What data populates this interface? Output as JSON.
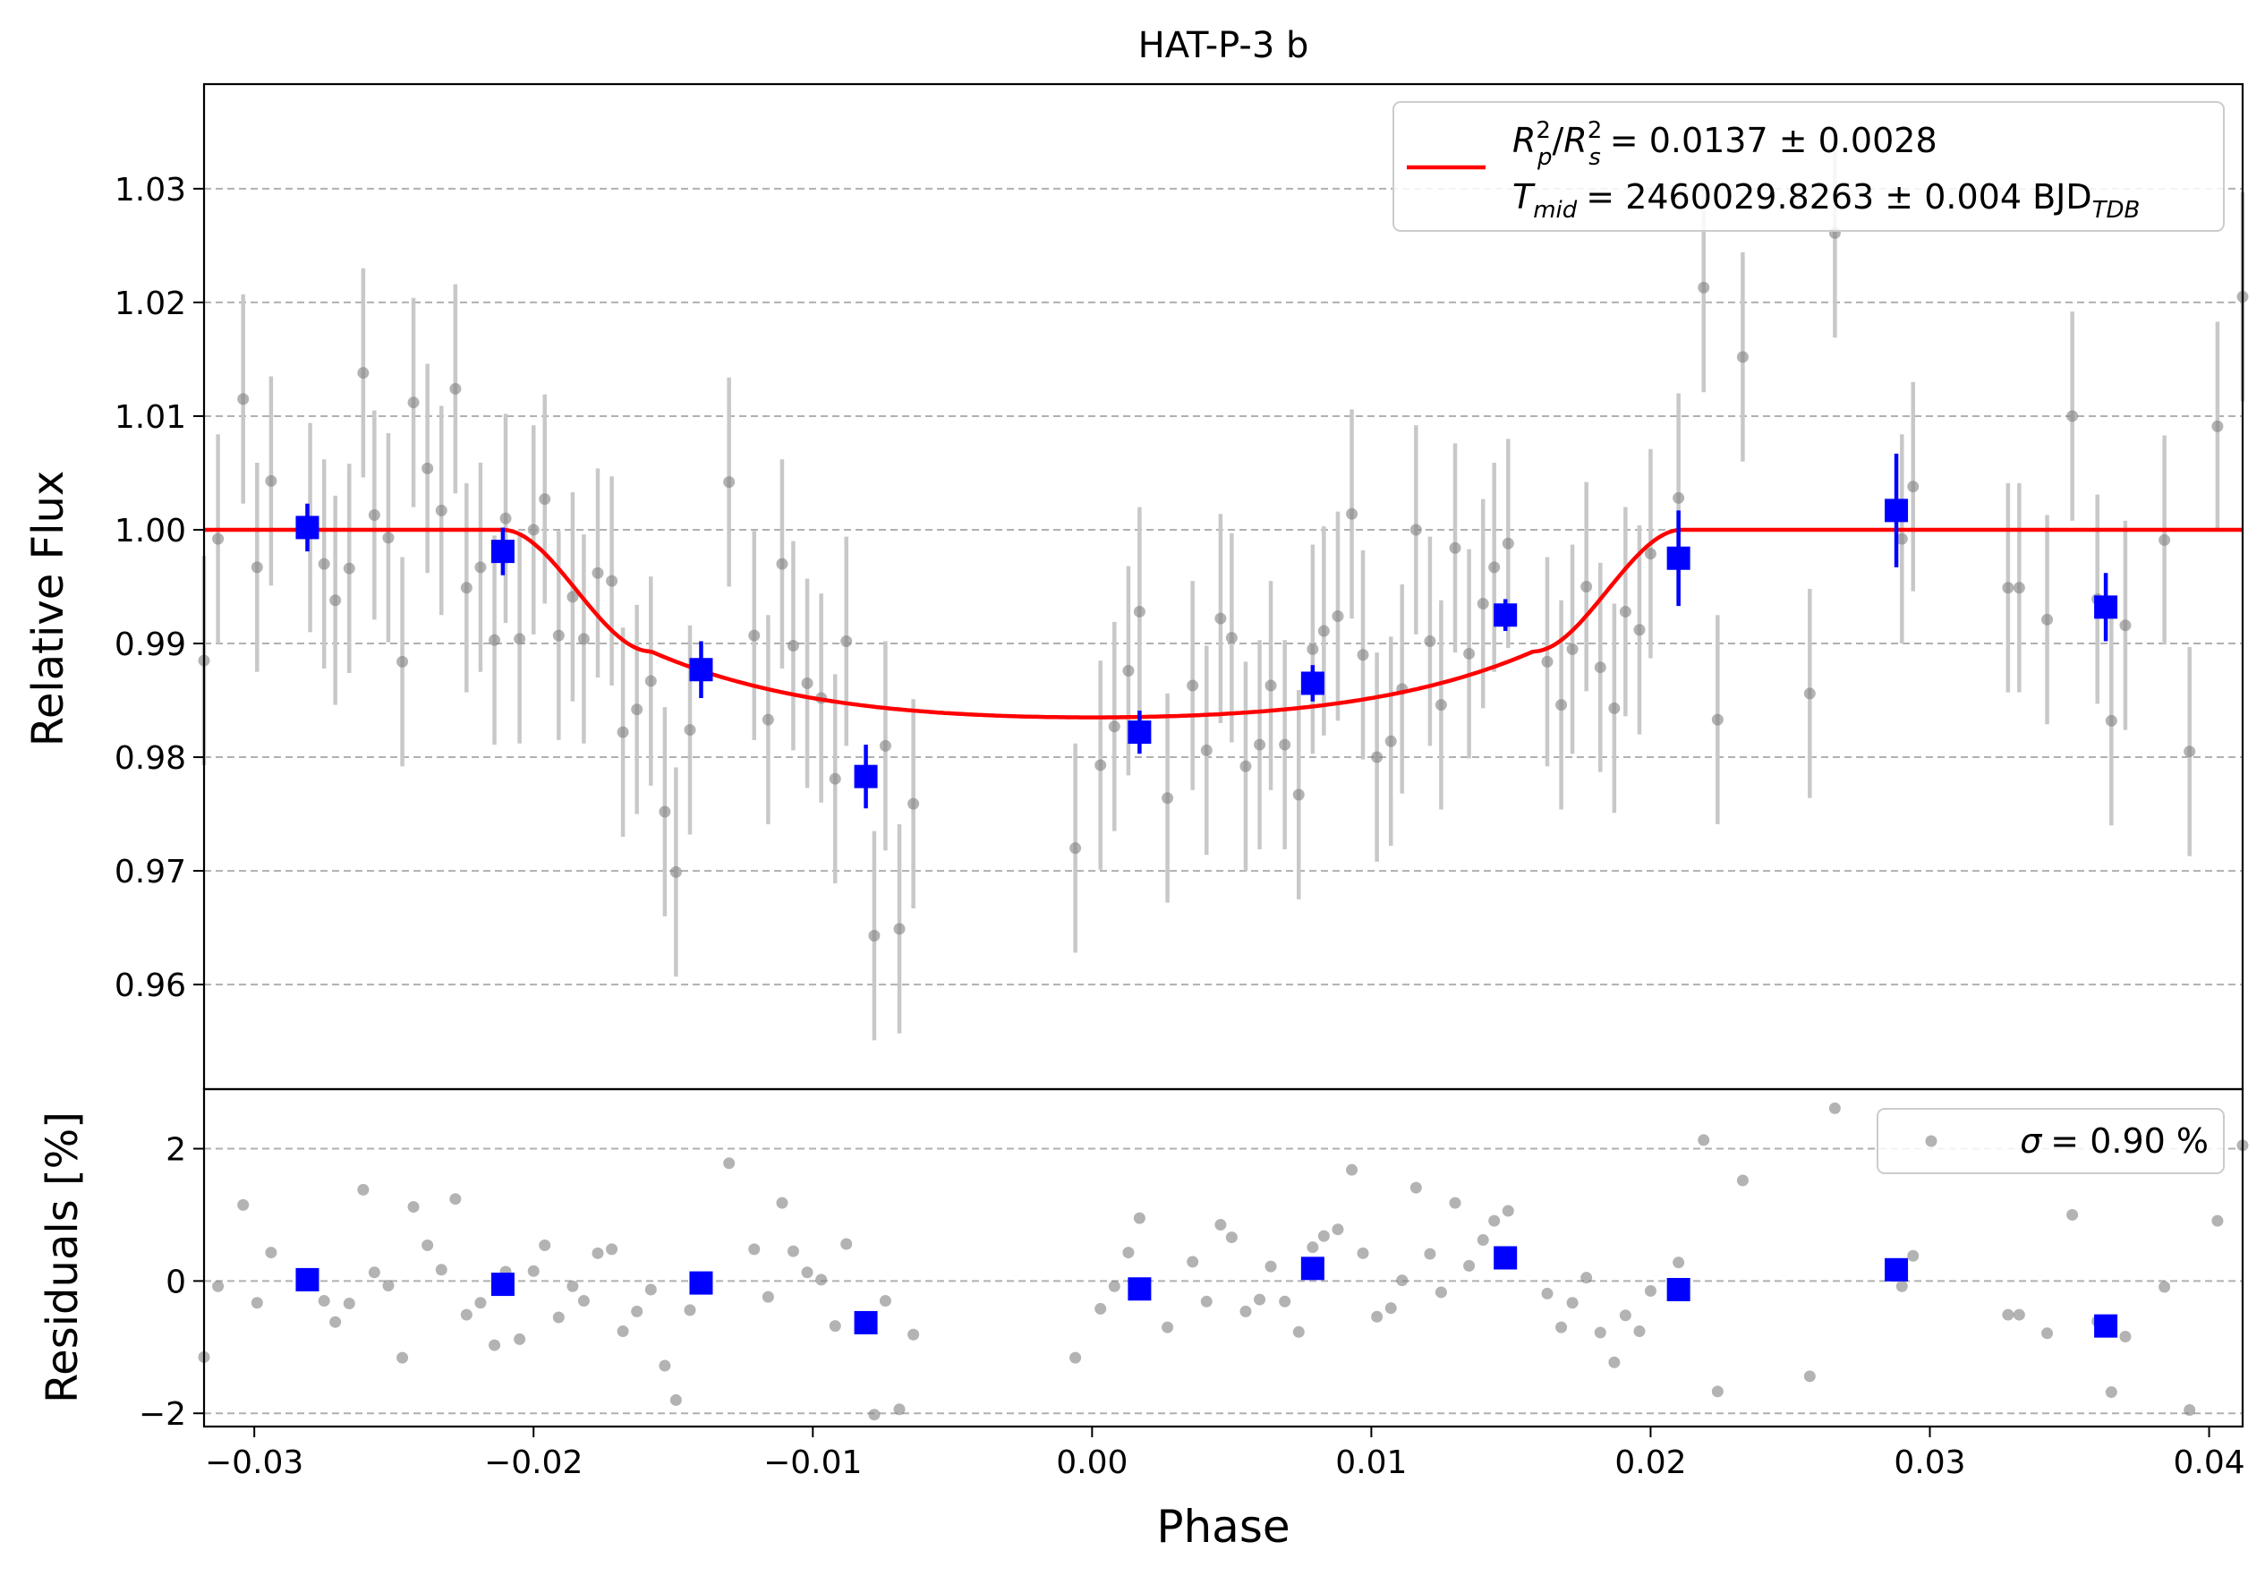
{
  "chart_data": {
    "title": "HAT-P-3 b",
    "xlabel": "Phase",
    "xlim": [
      -0.0318,
      0.0412
    ],
    "x_ticks": [
      -0.03,
      -0.02,
      -0.01,
      0.0,
      0.01,
      0.02,
      0.03,
      0.04
    ],
    "x_tick_labels": [
      "−0.03",
      "−0.02",
      "−0.01",
      "0.00",
      "0.01",
      "0.02",
      "0.03",
      "0.04"
    ],
    "colors": {
      "raw": "#808080",
      "raw_err": "#c8c8c8",
      "binned": "#0000ff",
      "model": "#ff0000",
      "grid": "#b0b0b0"
    },
    "top_panel": {
      "type": "scatter",
      "ylabel": "Relative Flux",
      "ylim": [
        0.9508,
        1.0392
      ],
      "y_ticks": [
        0.96,
        0.97,
        0.98,
        0.99,
        1.0,
        1.01,
        1.02,
        1.03
      ],
      "y_tick_labels": [
        "0.96",
        "0.97",
        "0.98",
        "0.99",
        "1.00",
        "1.01",
        "1.02",
        "1.03"
      ],
      "grid": "horizontal dashed",
      "legend": {
        "placement": "upper-right",
        "line1": "= 0.0137 ± 0.0028",
        "line2_a": "= 2460029.8263 ± 0.004 BJD",
        "rp_label": "R",
        "rp_sub": "p",
        "rp_sup": "2",
        "rs_label": "R",
        "rs_sub": "s",
        "rs_sup": "2",
        "t_label": "T",
        "t_sub": "mid",
        "tdb_sub": "TDB"
      },
      "model": {
        "name": "transit model",
        "depth": 0.0165,
        "t1": -0.0211,
        "t2": -0.0158,
        "t3": 0.0158,
        "t4": 0.0211
      },
      "raw_error": 0.0092,
      "raw_points": [
        [
          -0.0318,
          0.9885
        ],
        [
          -0.0313,
          0.9992
        ],
        [
          -0.0304,
          1.0115
        ],
        [
          -0.0299,
          0.9967
        ],
        [
          -0.0294,
          1.0043
        ],
        [
          -0.028,
          1.0002
        ],
        [
          -0.0275,
          0.997
        ],
        [
          -0.0271,
          0.9938
        ],
        [
          -0.0266,
          0.9966
        ],
        [
          -0.0261,
          1.0138
        ],
        [
          -0.0257,
          1.0013
        ],
        [
          -0.0252,
          0.9993
        ],
        [
          -0.0247,
          0.9884
        ],
        [
          -0.0243,
          1.0112
        ],
        [
          -0.0238,
          1.0054
        ],
        [
          -0.0233,
          1.0017
        ],
        [
          -0.0228,
          1.0124
        ],
        [
          -0.0224,
          0.9949
        ],
        [
          -0.0219,
          0.9967
        ],
        [
          -0.0214,
          0.9903
        ],
        [
          -0.021,
          1.001
        ],
        [
          -0.0205,
          0.9904
        ],
        [
          -0.02,
          1.0
        ],
        [
          -0.0196,
          1.0027
        ],
        [
          -0.0191,
          0.9907
        ],
        [
          -0.0186,
          0.9941
        ],
        [
          -0.0182,
          0.9904
        ],
        [
          -0.0177,
          0.9962
        ],
        [
          -0.0172,
          0.9955
        ],
        [
          -0.0168,
          0.9822
        ],
        [
          -0.0163,
          0.9842
        ],
        [
          -0.0158,
          0.9867
        ],
        [
          -0.0153,
          0.9752
        ],
        [
          -0.0149,
          0.9699
        ],
        [
          -0.0144,
          0.9824
        ],
        [
          -0.013,
          1.0042
        ],
        [
          -0.0121,
          0.9907
        ],
        [
          -0.0116,
          0.9833
        ],
        [
          -0.0111,
          0.997
        ],
        [
          -0.0107,
          0.9898
        ],
        [
          -0.0102,
          0.9865
        ],
        [
          -0.0097,
          0.9852
        ],
        [
          -0.0092,
          0.9781
        ],
        [
          -0.0088,
          0.9902
        ],
        [
          -0.0078,
          0.9643
        ],
        [
          -0.0074,
          0.981
        ],
        [
          -0.0069,
          0.9649
        ],
        [
          -0.0064,
          0.9759
        ],
        [
          -0.0006,
          0.972
        ],
        [
          0.0003,
          0.9793
        ],
        [
          0.0008,
          0.9827
        ],
        [
          0.0013,
          0.9876
        ],
        [
          0.0017,
          0.9928
        ],
        [
          0.0027,
          0.9764
        ],
        [
          0.0036,
          0.9863
        ],
        [
          0.0041,
          0.9806
        ],
        [
          0.0046,
          0.9922
        ],
        [
          0.005,
          0.9905
        ],
        [
          0.0055,
          0.9792
        ],
        [
          0.006,
          0.9811
        ],
        [
          0.0064,
          0.9863
        ],
        [
          0.0069,
          0.9811
        ],
        [
          0.0074,
          0.9767
        ],
        [
          0.0079,
          0.9895
        ],
        [
          0.0083,
          0.9911
        ],
        [
          0.0088,
          0.9924
        ],
        [
          0.0093,
          1.0014
        ],
        [
          0.0097,
          0.989
        ],
        [
          0.0102,
          0.98
        ],
        [
          0.0107,
          0.9814
        ],
        [
          0.0111,
          0.986
        ],
        [
          0.0116,
          1.0
        ],
        [
          0.0121,
          0.9902
        ],
        [
          0.0125,
          0.9846
        ],
        [
          0.013,
          0.9984
        ],
        [
          0.0135,
          0.9891
        ],
        [
          0.014,
          0.9935
        ],
        [
          0.0144,
          0.9967
        ],
        [
          0.0149,
          0.9988
        ],
        [
          0.0163,
          0.9884
        ],
        [
          0.0168,
          0.9846
        ],
        [
          0.0172,
          0.9895
        ],
        [
          0.0177,
          0.995
        ],
        [
          0.0182,
          0.9879
        ],
        [
          0.0187,
          0.9843
        ],
        [
          0.0191,
          0.9928
        ],
        [
          0.0196,
          0.9912
        ],
        [
          0.02,
          0.9979
        ],
        [
          0.021,
          1.0028
        ],
        [
          0.0219,
          1.0213
        ],
        [
          0.0224,
          0.9833
        ],
        [
          0.0233,
          1.0152
        ],
        [
          0.0257,
          0.9856
        ],
        [
          0.0266,
          1.0261
        ],
        [
          0.029,
          0.9992
        ],
        [
          0.0294,
          1.0038
        ],
        [
          0.0328,
          0.9949
        ],
        [
          0.0332,
          0.9949
        ],
        [
          0.0342,
          0.9921
        ],
        [
          0.0351,
          1.01
        ],
        [
          0.036,
          0.9939
        ],
        [
          0.0365,
          0.9832
        ],
        [
          0.037,
          0.9916
        ],
        [
          0.0384,
          0.9991
        ],
        [
          0.0393,
          0.9805
        ],
        [
          0.0403,
          1.0091
        ],
        [
          0.0412,
          1.0205
        ]
      ],
      "binned_points": [
        {
          "x": -0.0281,
          "y": 1.0002,
          "err": 0.0021
        },
        {
          "x": -0.0211,
          "y": 0.9981,
          "err": 0.0021
        },
        {
          "x": -0.014,
          "y": 0.9877,
          "err": 0.0025
        },
        {
          "x": -0.0081,
          "y": 0.9783,
          "err": 0.0028
        },
        {
          "x": 0.0017,
          "y": 0.9822,
          "err": 0.0019
        },
        {
          "x": 0.0079,
          "y": 0.9865,
          "err": 0.0016
        },
        {
          "x": 0.0148,
          "y": 0.9925,
          "err": 0.0014
        },
        {
          "x": 0.021,
          "y": 0.9975,
          "err": 0.0042
        },
        {
          "x": 0.0288,
          "y": 1.0017,
          "err": 0.005
        },
        {
          "x": 0.0363,
          "y": 0.9932,
          "err": 0.003
        }
      ]
    },
    "bottom_panel": {
      "type": "scatter",
      "ylabel": "Residuals [%]",
      "ylim": [
        -2.2,
        2.9
      ],
      "y_ticks": [
        -2,
        0,
        2
      ],
      "y_tick_labels": [
        "−2",
        "0",
        "2"
      ],
      "grid": "horizontal dashed",
      "legend": {
        "placement": "upper-right",
        "sigma_symbol": "σ",
        "text": "= 0.90 %"
      },
      "raw_points": [
        [
          -0.0318,
          -1.15
        ],
        [
          -0.0313,
          -0.08
        ],
        [
          -0.0304,
          1.15
        ],
        [
          -0.0299,
          -0.33
        ],
        [
          -0.0294,
          0.43
        ],
        [
          -0.028,
          0.02
        ],
        [
          -0.0275,
          -0.3
        ],
        [
          -0.0271,
          -0.62
        ],
        [
          -0.0266,
          -0.34
        ],
        [
          -0.0261,
          1.38
        ],
        [
          -0.0257,
          0.13
        ],
        [
          -0.0252,
          -0.07
        ],
        [
          -0.0247,
          -1.16
        ],
        [
          -0.0243,
          1.12
        ],
        [
          -0.0238,
          0.54
        ],
        [
          -0.0233,
          0.17
        ],
        [
          -0.0228,
          1.24
        ],
        [
          -0.0224,
          -0.51
        ],
        [
          -0.0219,
          -0.33
        ],
        [
          -0.0214,
          -0.97
        ],
        [
          -0.021,
          0.14
        ],
        [
          -0.0205,
          -0.88
        ],
        [
          -0.02,
          0.15
        ],
        [
          -0.0196,
          0.54
        ],
        [
          -0.0191,
          -0.55
        ],
        [
          -0.0186,
          -0.08
        ],
        [
          -0.0182,
          -0.3
        ],
        [
          -0.0177,
          0.42
        ],
        [
          -0.0172,
          0.48
        ],
        [
          -0.0168,
          -0.76
        ],
        [
          -0.0163,
          -0.46
        ],
        [
          -0.0158,
          -0.13
        ],
        [
          -0.0153,
          -1.28
        ],
        [
          -0.0149,
          -1.8
        ],
        [
          -0.0144,
          -0.44
        ],
        [
          -0.013,
          1.78
        ],
        [
          -0.0121,
          0.48
        ],
        [
          -0.0116,
          -0.24
        ],
        [
          -0.0111,
          1.18
        ],
        [
          -0.0107,
          0.45
        ],
        [
          -0.0102,
          0.13
        ],
        [
          -0.0097,
          0.02
        ],
        [
          -0.0092,
          -0.68
        ],
        [
          -0.0088,
          0.56
        ],
        [
          -0.0078,
          -2.02
        ],
        [
          -0.0074,
          -0.3
        ],
        [
          -0.0069,
          -1.94
        ],
        [
          -0.0064,
          -0.81
        ],
        [
          -0.0006,
          -1.16
        ],
        [
          0.0003,
          -0.42
        ],
        [
          0.0008,
          -0.08
        ],
        [
          0.0013,
          0.43
        ],
        [
          0.0017,
          0.95
        ],
        [
          0.0027,
          -0.7
        ],
        [
          0.0036,
          0.29
        ],
        [
          0.0041,
          -0.31
        ],
        [
          0.0046,
          0.85
        ],
        [
          0.005,
          0.66
        ],
        [
          0.0055,
          -0.46
        ],
        [
          0.006,
          -0.28
        ],
        [
          0.0064,
          0.22
        ],
        [
          0.0069,
          -0.31
        ],
        [
          0.0074,
          -0.77
        ],
        [
          0.0079,
          0.51
        ],
        [
          0.0083,
          0.68
        ],
        [
          0.0088,
          0.78
        ],
        [
          0.0093,
          1.68
        ],
        [
          0.0097,
          0.42
        ],
        [
          0.0102,
          -0.54
        ],
        [
          0.0107,
          -0.41
        ],
        [
          0.0111,
          0.01
        ],
        [
          0.0116,
          1.41
        ],
        [
          0.0121,
          0.41
        ],
        [
          0.0125,
          -0.17
        ],
        [
          0.013,
          1.18
        ],
        [
          0.0135,
          0.23
        ],
        [
          0.014,
          0.62
        ],
        [
          0.0144,
          0.91
        ],
        [
          0.0149,
          1.06
        ],
        [
          0.0163,
          -0.19
        ],
        [
          0.0168,
          -0.7
        ],
        [
          0.0172,
          -0.33
        ],
        [
          0.0177,
          0.05
        ],
        [
          0.0182,
          -0.78
        ],
        [
          0.0187,
          -1.23
        ],
        [
          0.0191,
          -0.52
        ],
        [
          0.0196,
          -0.76
        ],
        [
          0.02,
          -0.15
        ],
        [
          0.021,
          0.28
        ],
        [
          0.0219,
          2.13
        ],
        [
          0.0224,
          -1.67
        ],
        [
          0.0233,
          1.52
        ],
        [
          0.0257,
          -1.44
        ],
        [
          0.0266,
          2.61
        ],
        [
          0.029,
          -0.08
        ],
        [
          0.0294,
          0.38
        ],
        [
          0.0328,
          -0.51
        ],
        [
          0.0332,
          -0.51
        ],
        [
          0.0342,
          -0.79
        ],
        [
          0.0351,
          1.0
        ],
        [
          0.036,
          -0.61
        ],
        [
          0.0365,
          -1.68
        ],
        [
          0.037,
          -0.84
        ],
        [
          0.0384,
          -0.09
        ],
        [
          0.0393,
          -1.95
        ],
        [
          0.0403,
          0.91
        ],
        [
          0.0412,
          2.05
        ]
      ],
      "binned_points": [
        [
          -0.0281,
          0.02
        ],
        [
          -0.0211,
          -0.05
        ],
        [
          -0.014,
          -0.03
        ],
        [
          -0.0081,
          -0.63
        ],
        [
          0.0017,
          -0.12
        ],
        [
          0.0079,
          0.19
        ],
        [
          0.0148,
          0.35
        ],
        [
          0.021,
          -0.13
        ],
        [
          0.0288,
          0.17
        ],
        [
          0.0363,
          -0.68
        ]
      ]
    }
  }
}
